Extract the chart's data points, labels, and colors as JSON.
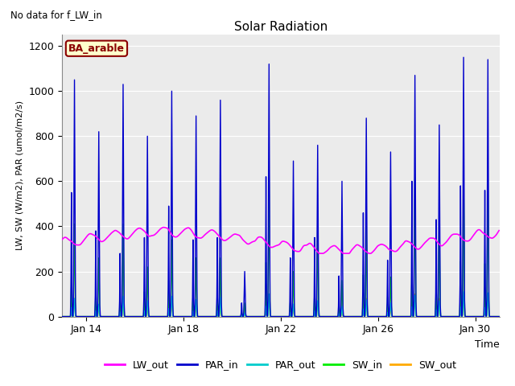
{
  "title": "Solar Radiation",
  "subtitle": "No data for f_LW_in",
  "xlabel": "Time",
  "ylabel": "LW, SW (W/m2), PAR (umol/m2/s)",
  "site_label": "BA_arable",
  "ylim": [
    0,
    1250
  ],
  "yticks": [
    0,
    200,
    400,
    600,
    800,
    1000,
    1200
  ],
  "colors": {
    "LW_out": "#ff00ff",
    "PAR_in": "#0000cc",
    "PAR_out": "#00cccc",
    "SW_in": "#00ee00",
    "SW_out": "#ffaa00"
  },
  "background_color": "#ebebeb",
  "n_days": 18,
  "start_day": 13,
  "x_ticks_days": [
    14,
    18,
    22,
    26,
    30
  ],
  "par_in_peaks_main": [
    1050,
    820,
    1030,
    800,
    1000,
    890,
    960,
    200,
    1120,
    690,
    760,
    600,
    880,
    730,
    1070,
    850,
    1150,
    1140
  ],
  "par_in_peaks_sec": [
    550,
    380,
    280,
    350,
    490,
    340,
    350,
    60,
    620,
    260,
    350,
    180,
    460,
    250,
    600,
    430,
    580,
    560
  ],
  "par_out_peaks_main": [
    80,
    55,
    90,
    70,
    90,
    75,
    85,
    15,
    100,
    55,
    70,
    45,
    75,
    60,
    95,
    70,
    110,
    105
  ],
  "par_out_peaks_sec": [
    40,
    25,
    20,
    25,
    35,
    24,
    25,
    5,
    45,
    18,
    25,
    13,
    33,
    18,
    43,
    30,
    42,
    40
  ],
  "sw_in_peaks_main": [
    410,
    260,
    410,
    220,
    340,
    260,
    260,
    60,
    620,
    200,
    410,
    160,
    400,
    175,
    620,
    430,
    630,
    610
  ],
  "sw_in_peaks_sec": [
    200,
    120,
    100,
    110,
    160,
    110,
    110,
    20,
    240,
    75,
    135,
    60,
    185,
    85,
    250,
    170,
    245,
    235
  ],
  "sw_out_peaks_main": [
    80,
    50,
    80,
    45,
    65,
    50,
    50,
    12,
    100,
    35,
    65,
    30,
    80,
    35,
    100,
    80,
    105,
    100
  ],
  "sw_out_peaks_sec": [
    38,
    22,
    18,
    20,
    30,
    20,
    20,
    4,
    45,
    14,
    25,
    11,
    35,
    15,
    48,
    32,
    46,
    44
  ],
  "lw_base": 335,
  "lw_amplitude": 40,
  "grid_color": "#ffffff",
  "linewidth_lw": 1.2,
  "linewidth_par": 1.0,
  "linewidth_sw": 1.0,
  "figsize": [
    6.4,
    4.8
  ],
  "dpi": 100
}
